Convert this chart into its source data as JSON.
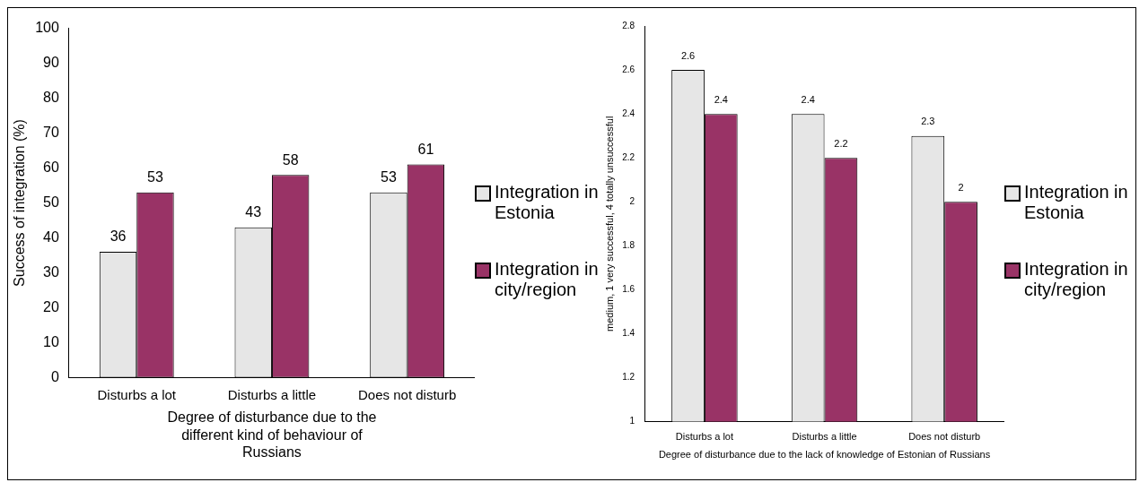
{
  "chart_data": [
    {
      "type": "bar",
      "ylabel": "Success of integration (%)",
      "xlabel": "Degree of disturbance due to the different kind of behaviour of Russians",
      "categories": [
        "Disturbs a lot",
        "Disturbs a little",
        "Does not disturb"
      ],
      "series": [
        {
          "name": "Integration in Estonia",
          "color": "#e6e6e6",
          "values": [
            36,
            43,
            53
          ]
        },
        {
          "name": "Integration in city/region",
          "color": "#993366",
          "values": [
            53,
            58,
            61
          ]
        }
      ],
      "ylim": [
        0,
        100
      ],
      "yticks": [
        0,
        10,
        20,
        30,
        40,
        50,
        60,
        70,
        80,
        90,
        100
      ],
      "grid": false,
      "legend": "right",
      "data_labels": true
    },
    {
      "type": "bar",
      "ylabel": "medium, 1 very successful, 4 totally unsuccessful",
      "xlabel": "Degree of disturbance due to the lack of knowledge of Estonian of Russians",
      "categories": [
        "Disturbs a lot",
        "Disturbs a little",
        "Does not disturb"
      ],
      "series": [
        {
          "name": "Integration in Estonia",
          "color": "#e6e6e6",
          "values": [
            2.6,
            2.4,
            2.3
          ]
        },
        {
          "name": "Integration in city/region",
          "color": "#993366",
          "values": [
            2.4,
            2.2,
            2
          ]
        }
      ],
      "ylim": [
        1,
        2.8
      ],
      "yticks": [
        1,
        1.2,
        1.4,
        1.6,
        1.8,
        2,
        2.2,
        2.4,
        2.6,
        2.8
      ],
      "grid": false,
      "legend": "right",
      "data_labels": true
    }
  ]
}
